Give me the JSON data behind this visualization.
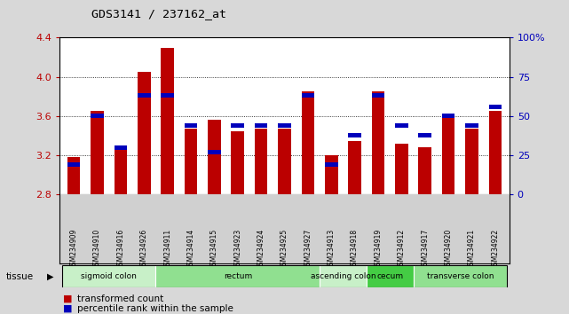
{
  "title": "GDS3141 / 237162_at",
  "samples": [
    "GSM234909",
    "GSM234910",
    "GSM234916",
    "GSM234926",
    "GSM234911",
    "GSM234914",
    "GSM234915",
    "GSM234923",
    "GSM234924",
    "GSM234925",
    "GSM234927",
    "GSM234913",
    "GSM234918",
    "GSM234919",
    "GSM234912",
    "GSM234917",
    "GSM234920",
    "GSM234921",
    "GSM234922"
  ],
  "red_values": [
    3.18,
    3.65,
    3.27,
    4.05,
    4.3,
    3.47,
    3.56,
    3.45,
    3.47,
    3.47,
    3.85,
    3.2,
    3.35,
    3.85,
    3.32,
    3.28,
    3.6,
    3.47,
    3.65
  ],
  "blue_pct": [
    19,
    50,
    30,
    63,
    63,
    44,
    27,
    44,
    44,
    44,
    63,
    19,
    38,
    63,
    44,
    38,
    50,
    44,
    56
  ],
  "ymin": 2.8,
  "ymax": 4.4,
  "yticks_left": [
    2.8,
    3.2,
    3.6,
    4.0,
    4.4
  ],
  "yticks_right": [
    0,
    25,
    50,
    75,
    100
  ],
  "tissue_groups": [
    {
      "label": "sigmoid colon",
      "start": 0,
      "end": 4,
      "color": "#c8f0c8"
    },
    {
      "label": "rectum",
      "start": 4,
      "end": 11,
      "color": "#90e090"
    },
    {
      "label": "ascending colon",
      "start": 11,
      "end": 13,
      "color": "#c8f0c8"
    },
    {
      "label": "cecum",
      "start": 13,
      "end": 15,
      "color": "#44cc44"
    },
    {
      "label": "transverse colon",
      "start": 15,
      "end": 19,
      "color": "#90e090"
    }
  ],
  "legend_red": "transformed count",
  "legend_blue": "percentile rank within the sample",
  "red_color": "#bb0000",
  "blue_color": "#0000bb",
  "bg_color": "#d8d8d8",
  "plot_bg": "#ffffff",
  "xtick_bg": "#d0d0d0"
}
